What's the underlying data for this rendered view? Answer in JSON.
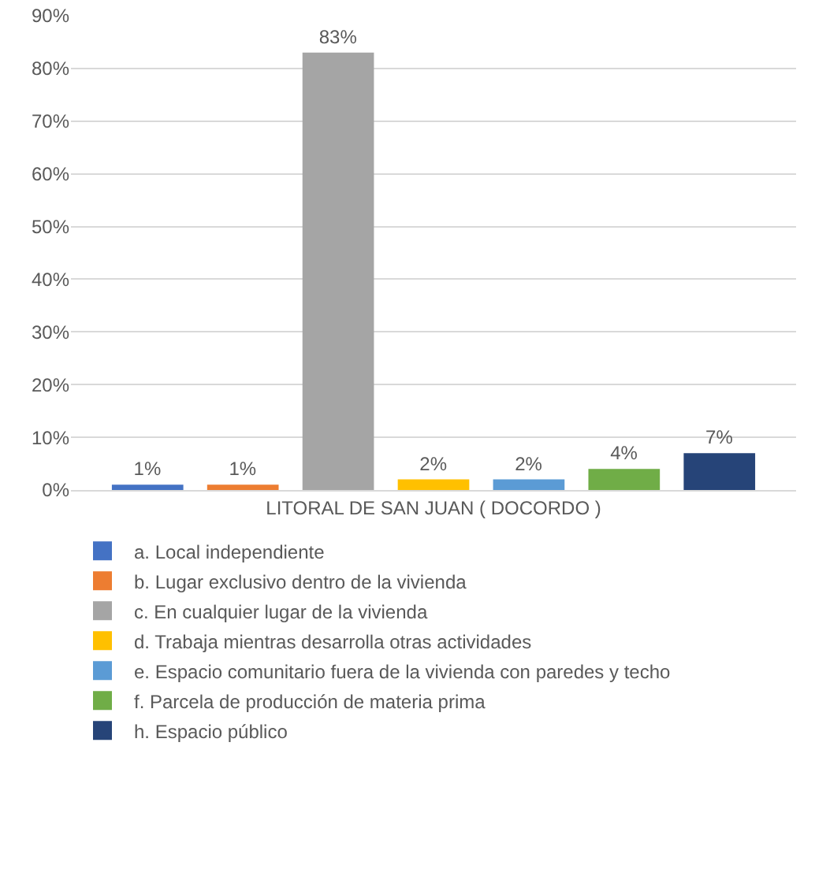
{
  "chart_data": {
    "type": "bar",
    "categories": [
      "LITORAL DE SAN JUAN ( DOCORDO )"
    ],
    "series": [
      {
        "name": "a. Local independiente",
        "color": "#4472c4",
        "values": [
          1
        ],
        "value_labels": [
          "1%"
        ]
      },
      {
        "name": "b. Lugar exclusivo dentro de la vivienda",
        "color": "#ed7d31",
        "values": [
          1
        ],
        "value_labels": [
          "1%"
        ]
      },
      {
        "name": "c. En cualquier lugar de la vivienda",
        "color": "#a5a5a5",
        "values": [
          83
        ],
        "value_labels": [
          "83%"
        ]
      },
      {
        "name": "d. Trabaja mientras desarrolla otras actividades",
        "color": "#ffc000",
        "values": [
          2
        ],
        "value_labels": [
          "2%"
        ]
      },
      {
        "name": "e. Espacio comunitario fuera de la vivienda con paredes y techo",
        "color": "#5b9bd5",
        "values": [
          2
        ],
        "value_labels": [
          "2%"
        ]
      },
      {
        "name": "f. Parcela de producción de materia prima",
        "color": "#70ad47",
        "values": [
          4
        ],
        "value_labels": [
          "4%"
        ]
      },
      {
        "name": "h. Espacio público",
        "color": "#264478",
        "values": [
          7
        ],
        "value_labels": [
          "7%"
        ]
      }
    ],
    "ylim": [
      0,
      90
    ],
    "yticks": [
      {
        "value": 0,
        "label": "0%"
      },
      {
        "value": 10,
        "label": "10%"
      },
      {
        "value": 20,
        "label": "20%"
      },
      {
        "value": 30,
        "label": "30%"
      },
      {
        "value": 40,
        "label": "40%"
      },
      {
        "value": 50,
        "label": "50%"
      },
      {
        "value": 60,
        "label": "60%"
      },
      {
        "value": 70,
        "label": "70%"
      },
      {
        "value": 80,
        "label": "80%"
      },
      {
        "value": 90,
        "label": "90%"
      }
    ],
    "grid": "y",
    "legend": "bottom"
  }
}
